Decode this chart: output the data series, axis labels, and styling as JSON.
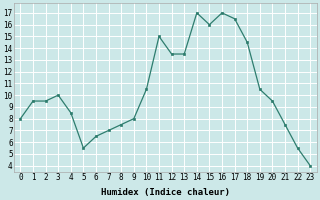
{
  "x": [
    0,
    1,
    2,
    3,
    4,
    5,
    6,
    7,
    8,
    9,
    10,
    11,
    12,
    13,
    14,
    15,
    16,
    17,
    18,
    19,
    20,
    21,
    22,
    23
  ],
  "y": [
    8,
    9.5,
    9.5,
    10,
    8.5,
    5.5,
    6.5,
    7,
    7.5,
    8,
    10.5,
    15,
    13.5,
    13.5,
    17,
    16,
    17,
    16.5,
    14.5,
    10.5,
    9.5,
    7.5,
    5.5,
    4
  ],
  "xlabel": "Humidex (Indice chaleur)",
  "xlim": [
    -0.5,
    23.5
  ],
  "ylim": [
    3.5,
    17.8
  ],
  "yticks": [
    4,
    5,
    6,
    7,
    8,
    9,
    10,
    11,
    12,
    13,
    14,
    15,
    16,
    17
  ],
  "xticks": [
    0,
    1,
    2,
    3,
    4,
    5,
    6,
    7,
    8,
    9,
    10,
    11,
    12,
    13,
    14,
    15,
    16,
    17,
    18,
    19,
    20,
    21,
    22,
    23
  ],
  "line_color": "#2e7d6e",
  "marker_color": "#2e7d6e",
  "bg_color": "#cce8e8",
  "grid_color": "#ffffff",
  "label_fontsize": 6.5,
  "tick_fontsize": 5.5
}
